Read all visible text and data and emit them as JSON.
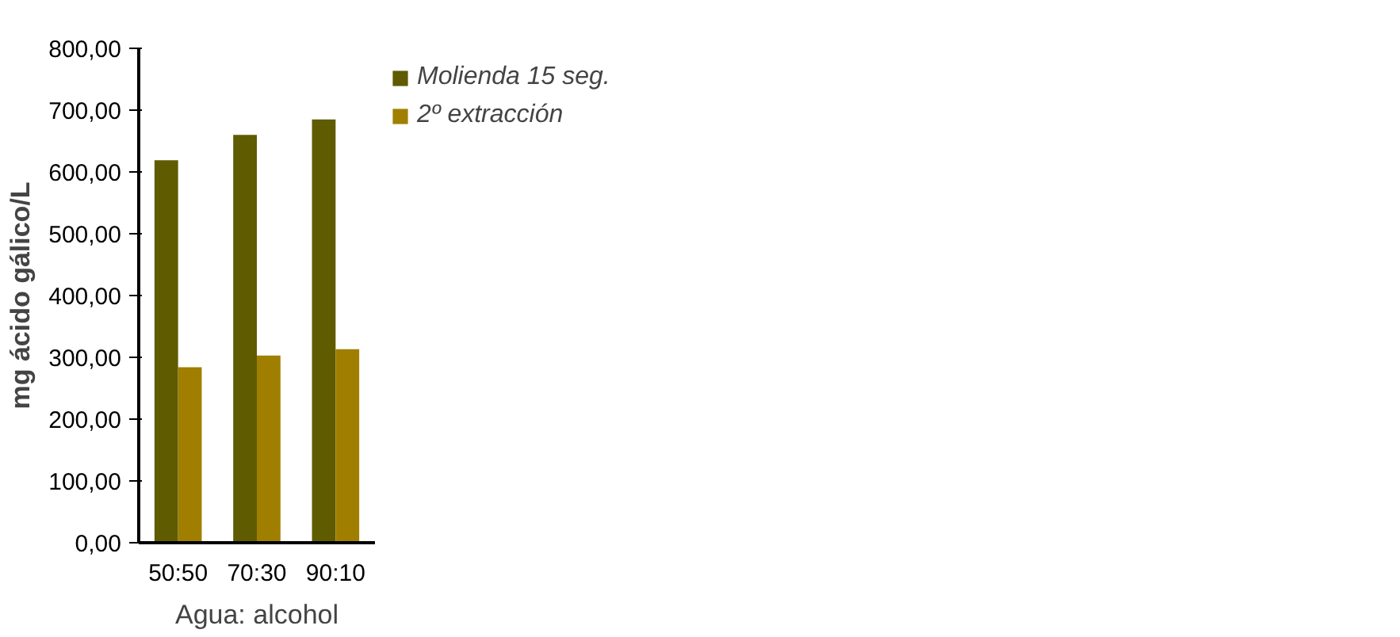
{
  "chart_data": {
    "type": "bar",
    "xlabel": "Agua: alcohol",
    "ylabel": "mg ácido gálico/L",
    "categories": [
      "50:50",
      "70:30",
      "90:10"
    ],
    "series": [
      {
        "name": "Molienda 15 seg.",
        "color": "#5f5b00",
        "values": [
          619,
          660,
          685
        ]
      },
      {
        "name": "2º extracción",
        "color": "#a07f00",
        "values": [
          284,
          303,
          313
        ]
      }
    ],
    "ylim": [
      0,
      800
    ],
    "yticks": [
      {
        "value": 0,
        "label": "0,00"
      },
      {
        "value": 100,
        "label": "100,00"
      },
      {
        "value": 200,
        "label": "200,00"
      },
      {
        "value": 300,
        "label": "300,00"
      },
      {
        "value": 400,
        "label": "400,00"
      },
      {
        "value": 500,
        "label": "500,00"
      },
      {
        "value": 600,
        "label": "600,00"
      },
      {
        "value": 700,
        "label": "700,00"
      },
      {
        "value": 800,
        "label": "800,00"
      }
    ],
    "grid": false,
    "legend": "top right"
  }
}
